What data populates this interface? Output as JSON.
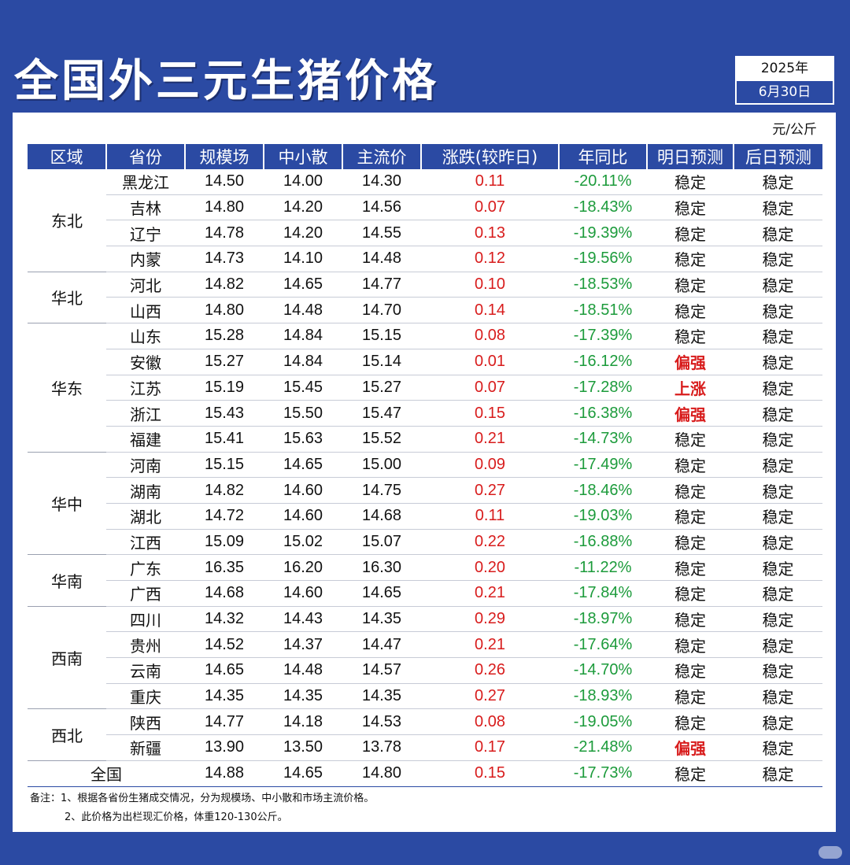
{
  "title": "全国外三元生猪价格",
  "date": {
    "year": "2025年",
    "day": "6月30日"
  },
  "unit": "元/公斤",
  "headers": [
    "区域",
    "省份",
    "规模场",
    "中小散",
    "主流价",
    "涨跌(较昨日)",
    "年同比",
    "明日预测",
    "后日预测"
  ],
  "rows": [
    {
      "region": "东北",
      "province": "黑龙江",
      "large": "14.50",
      "small": "14.00",
      "main": "14.30",
      "change": "0.11",
      "yoy": "-20.11%",
      "tomorrow": "稳定",
      "after": "稳定"
    },
    {
      "region": "",
      "province": "吉林",
      "large": "14.80",
      "small": "14.20",
      "main": "14.56",
      "change": "0.07",
      "yoy": "-18.43%",
      "tomorrow": "稳定",
      "after": "稳定"
    },
    {
      "region": "",
      "province": "辽宁",
      "large": "14.78",
      "small": "14.20",
      "main": "14.55",
      "change": "0.13",
      "yoy": "-19.39%",
      "tomorrow": "稳定",
      "after": "稳定"
    },
    {
      "region": "",
      "province": "内蒙",
      "large": "14.73",
      "small": "14.10",
      "main": "14.48",
      "change": "0.12",
      "yoy": "-19.56%",
      "tomorrow": "稳定",
      "after": "稳定"
    },
    {
      "region": "华北",
      "province": "河北",
      "large": "14.82",
      "small": "14.65",
      "main": "14.77",
      "change": "0.10",
      "yoy": "-18.53%",
      "tomorrow": "稳定",
      "after": "稳定"
    },
    {
      "region": "",
      "province": "山西",
      "large": "14.80",
      "small": "14.48",
      "main": "14.70",
      "change": "0.14",
      "yoy": "-18.51%",
      "tomorrow": "稳定",
      "after": "稳定"
    },
    {
      "region": "华东",
      "province": "山东",
      "large": "15.28",
      "small": "14.84",
      "main": "15.15",
      "change": "0.08",
      "yoy": "-17.39%",
      "tomorrow": "稳定",
      "after": "稳定"
    },
    {
      "region": "",
      "province": "安徽",
      "large": "15.27",
      "small": "14.84",
      "main": "15.14",
      "change": "0.01",
      "yoy": "-16.12%",
      "tomorrow": "偏强",
      "after": "稳定"
    },
    {
      "region": "",
      "province": "江苏",
      "large": "15.19",
      "small": "15.45",
      "main": "15.27",
      "change": "0.07",
      "yoy": "-17.28%",
      "tomorrow": "上涨",
      "after": "稳定"
    },
    {
      "region": "",
      "province": "浙江",
      "large": "15.43",
      "small": "15.50",
      "main": "15.47",
      "change": "0.15",
      "yoy": "-16.38%",
      "tomorrow": "偏强",
      "after": "稳定"
    },
    {
      "region": "",
      "province": "福建",
      "large": "15.41",
      "small": "15.63",
      "main": "15.52",
      "change": "0.21",
      "yoy": "-14.73%",
      "tomorrow": "稳定",
      "after": "稳定"
    },
    {
      "region": "华中",
      "province": "河南",
      "large": "15.15",
      "small": "14.65",
      "main": "15.00",
      "change": "0.09",
      "yoy": "-17.49%",
      "tomorrow": "稳定",
      "after": "稳定"
    },
    {
      "region": "",
      "province": "湖南",
      "large": "14.82",
      "small": "14.60",
      "main": "14.75",
      "change": "0.27",
      "yoy": "-18.46%",
      "tomorrow": "稳定",
      "after": "稳定"
    },
    {
      "region": "",
      "province": "湖北",
      "large": "14.72",
      "small": "14.60",
      "main": "14.68",
      "change": "0.11",
      "yoy": "-19.03%",
      "tomorrow": "稳定",
      "after": "稳定"
    },
    {
      "region": "",
      "province": "江西",
      "large": "15.09",
      "small": "15.02",
      "main": "15.07",
      "change": "0.22",
      "yoy": "-16.88%",
      "tomorrow": "稳定",
      "after": "稳定"
    },
    {
      "region": "华南",
      "province": "广东",
      "large": "16.35",
      "small": "16.20",
      "main": "16.30",
      "change": "0.20",
      "yoy": "-11.22%",
      "tomorrow": "稳定",
      "after": "稳定"
    },
    {
      "region": "",
      "province": "广西",
      "large": "14.68",
      "small": "14.60",
      "main": "14.65",
      "change": "0.21",
      "yoy": "-17.84%",
      "tomorrow": "稳定",
      "after": "稳定"
    },
    {
      "region": "西南",
      "province": "四川",
      "large": "14.32",
      "small": "14.43",
      "main": "14.35",
      "change": "0.29",
      "yoy": "-18.97%",
      "tomorrow": "稳定",
      "after": "稳定"
    },
    {
      "region": "",
      "province": "贵州",
      "large": "14.52",
      "small": "14.37",
      "main": "14.47",
      "change": "0.21",
      "yoy": "-17.64%",
      "tomorrow": "稳定",
      "after": "稳定"
    },
    {
      "region": "",
      "province": "云南",
      "large": "14.65",
      "small": "14.48",
      "main": "14.57",
      "change": "0.26",
      "yoy": "-14.70%",
      "tomorrow": "稳定",
      "after": "稳定"
    },
    {
      "region": "",
      "province": "重庆",
      "large": "14.35",
      "small": "14.35",
      "main": "14.35",
      "change": "0.27",
      "yoy": "-18.93%",
      "tomorrow": "稳定",
      "after": "稳定"
    },
    {
      "region": "西北",
      "province": "陕西",
      "large": "14.77",
      "small": "14.18",
      "main": "14.53",
      "change": "0.08",
      "yoy": "-19.05%",
      "tomorrow": "稳定",
      "after": "稳定"
    },
    {
      "region": "",
      "province": "新疆",
      "large": "13.90",
      "small": "13.50",
      "main": "13.78",
      "change": "0.17",
      "yoy": "-21.48%",
      "tomorrow": "偏强",
      "after": "稳定"
    }
  ],
  "total": {
    "label": "全国",
    "large": "14.88",
    "small": "14.65",
    "main": "14.80",
    "change": "0.15",
    "yoy": "-17.73%",
    "tomorrow": "稳定",
    "after": "稳定"
  },
  "notes": [
    "备注：1、根据各省份生猪成交情况，分为规模场、中小散和市场主流价格。",
    "2、此价格为出栏现汇价格，体重120-130公斤。"
  ],
  "colors": {
    "brand": "#2b4aa3",
    "up": "#d81c1c",
    "down": "#1c9b3b"
  }
}
